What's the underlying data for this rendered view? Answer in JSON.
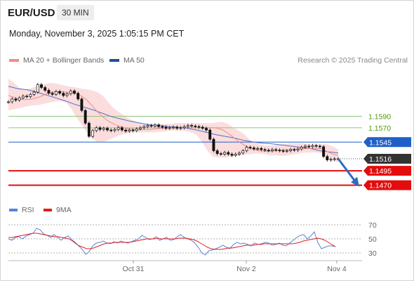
{
  "header": {
    "symbol": "EUR/USD",
    "timeframe": "30 MIN",
    "datetime": "Monday, November 3, 2025 1:05:15 PM CET",
    "research": "Research © 2025 Trading Central"
  },
  "legend": {
    "ma20_label": "MA 20 + Bollinger Bands",
    "ma50_label": "MA 50",
    "rsi_label": "RSI",
    "ma9_label": "9MA"
  },
  "colors": {
    "ma20": "#f08a8a",
    "bands_fill": "#fbd7d7",
    "ma50": "#4a72c9",
    "resistance_line": "#8cc77a",
    "resistance_text": "#4e9a06",
    "pivot": "#1f5fc8",
    "support": "#e30d0d",
    "last_price_bg": "#333333",
    "rsi": "#5b82d6",
    "rsi_ma": "#e02020",
    "candle": "#111111",
    "arrow": "#2d6dbb"
  },
  "chart_data": {
    "type": "candlestick",
    "title": "EUR/USD",
    "timeframe": "30 MIN",
    "y_range": [
      1.145,
      1.167
    ],
    "x_labels": [
      "Oct 31",
      "Nov 2",
      "Nov 4"
    ],
    "levels": [
      {
        "name": "resistance-2",
        "value": 1.159,
        "label": "1.1590",
        "style": "resistance"
      },
      {
        "name": "resistance-1",
        "value": 1.157,
        "label": "1.1570",
        "style": "resistance"
      },
      {
        "name": "pivot",
        "value": 1.1545,
        "label": "1.1545",
        "style": "pivot"
      },
      {
        "name": "last-price",
        "value": 1.1516,
        "label": "1.1516",
        "style": "last"
      },
      {
        "name": "support-1",
        "value": 1.1495,
        "label": "1.1495",
        "style": "support"
      },
      {
        "name": "support-2",
        "value": 1.147,
        "label": "1.1470",
        "style": "support"
      }
    ],
    "close": [
      1.1615,
      1.162,
      1.1618,
      1.1622,
      1.1625,
      1.1624,
      1.1628,
      1.1632,
      1.1645,
      1.164,
      1.1635,
      1.163,
      1.1628,
      1.1633,
      1.163,
      1.1626,
      1.1629,
      1.1634,
      1.163,
      1.162,
      1.16,
      1.1578,
      1.1555,
      1.1565,
      1.157,
      1.1567,
      1.1569,
      1.1566,
      1.1565,
      1.1567,
      1.157,
      1.1566,
      1.1564,
      1.1566,
      1.1565,
      1.1568,
      1.157,
      1.1572,
      1.1574,
      1.1573,
      1.1575,
      1.1572,
      1.1571,
      1.1569,
      1.157,
      1.1571,
      1.1569,
      1.157,
      1.1572,
      1.1574,
      1.1573,
      1.1572,
      1.1571,
      1.1569,
      1.1566,
      1.155,
      1.153,
      1.1525,
      1.1524,
      1.1527,
      1.1524,
      1.1522,
      1.1524,
      1.1526,
      1.153,
      1.1536,
      1.1535,
      1.1533,
      1.1534,
      1.1532,
      1.1531,
      1.153,
      1.1532,
      1.1531,
      1.153,
      1.1529,
      1.153,
      1.1532,
      1.1531,
      1.1533,
      1.1536,
      1.1538,
      1.1537,
      1.1539,
      1.1538,
      1.1537,
      1.152,
      1.1514,
      1.1515,
      1.1516,
      1.1516
    ],
    "ma20": [
      1.1626,
      1.1623,
      1.162,
      1.1619,
      1.1619,
      1.1621,
      1.1624,
      1.1628,
      1.1631,
      1.1633,
      1.1633,
      1.1632,
      1.1631,
      1.1629,
      1.1625,
      1.1618,
      1.1608,
      1.1598,
      1.1589,
      1.1582,
      1.1577,
      1.1573,
      1.157,
      1.1568,
      1.1567,
      1.1567,
      1.1567,
      1.1567,
      1.1568,
      1.1569,
      1.1569,
      1.157,
      1.157,
      1.157,
      1.157,
      1.157,
      1.157,
      1.157,
      1.157,
      1.157,
      1.1569,
      1.1566,
      1.156,
      1.1553,
      1.1546,
      1.154,
      1.1535,
      1.1532,
      1.153,
      1.1529,
      1.1529,
      1.153,
      1.1531,
      1.1532,
      1.1532,
      1.1533,
      1.1534,
      1.1534,
      1.1534,
      1.1534,
      1.1533,
      1.1528,
      1.1524,
      1.1522
    ],
    "bb_upper": [
      1.1655,
      1.1649,
      1.164,
      1.1636,
      1.1638,
      1.1641,
      1.1643,
      1.1646,
      1.1648,
      1.1647,
      1.1645,
      1.1643,
      1.1641,
      1.164,
      1.1638,
      1.1637,
      1.1635,
      1.1632,
      1.1626,
      1.1615,
      1.1605,
      1.1598,
      1.1592,
      1.1586,
      1.1582,
      1.1578,
      1.1576,
      1.1575,
      1.1575,
      1.1576,
      1.1577,
      1.1577,
      1.1578,
      1.1578,
      1.1578,
      1.1578,
      1.1578,
      1.1578,
      1.1578,
      1.1578,
      1.158,
      1.158,
      1.1576,
      1.157,
      1.1565,
      1.1559,
      1.155,
      1.1544,
      1.1541,
      1.1539,
      1.1539,
      1.154,
      1.1541,
      1.1542,
      1.1543,
      1.1543,
      1.1543,
      1.1542,
      1.1541,
      1.1541,
      1.1541,
      1.1541,
      1.1537,
      1.1532
    ],
    "bb_lower": [
      1.16,
      1.1602,
      1.1604,
      1.1606,
      1.1608,
      1.1609,
      1.161,
      1.1612,
      1.1614,
      1.1616,
      1.1616,
      1.1614,
      1.1603,
      1.1588,
      1.1575,
      1.1562,
      1.1551,
      1.1545,
      1.1545,
      1.1548,
      1.1552,
      1.1556,
      1.1559,
      1.1561,
      1.1562,
      1.1562,
      1.1562,
      1.1562,
      1.1562,
      1.1563,
      1.1564,
      1.1565,
      1.1565,
      1.1565,
      1.1564,
      1.1562,
      1.1557,
      1.1545,
      1.153,
      1.152,
      1.1518,
      1.1518,
      1.1519,
      1.152,
      1.1521,
      1.1523,
      1.1524,
      1.1525,
      1.1525,
      1.1524,
      1.1522,
      1.1522,
      1.1521,
      1.1521,
      1.1523,
      1.1524,
      1.1526,
      1.1527,
      1.1527,
      1.1527,
      1.1525,
      1.1518,
      1.1512,
      1.151
    ],
    "ma50": [
      1.1642,
      1.1638,
      1.1636,
      1.1632,
      1.1627,
      1.1622,
      1.1617,
      1.1611,
      1.1606,
      1.1601,
      1.1595,
      1.1589,
      1.1585,
      1.1581,
      1.1578,
      1.1575,
      1.1574,
      1.1572,
      1.1571,
      1.1569,
      1.1566,
      1.1562,
      1.1558,
      1.1555,
      1.1552,
      1.1548,
      1.1545,
      1.1543,
      1.1542,
      1.154,
      1.1538,
      1.1536,
      1.1534,
      1.153,
      1.1528,
      1.1526
    ],
    "forecast": {
      "from": 1.1516,
      "to": 1.147
    },
    "rsi": {
      "y_range": [
        20,
        80
      ],
      "ticks": [
        70,
        50,
        30
      ],
      "rsi": [
        50,
        48,
        52,
        53,
        50,
        54,
        56,
        58,
        65,
        63,
        57,
        55,
        52,
        56,
        52,
        48,
        52,
        54,
        49,
        45,
        40,
        35,
        28,
        32,
        40,
        44,
        45,
        47,
        44,
        43,
        46,
        44,
        47,
        45,
        44,
        46,
        48,
        50,
        55,
        52,
        49,
        50,
        53,
        48,
        50,
        52,
        48,
        49,
        53,
        56,
        52,
        50,
        48,
        44,
        38,
        30,
        27,
        33,
        34,
        36,
        38,
        41,
        38,
        36,
        42,
        45,
        43,
        44,
        42,
        40,
        44,
        42,
        43,
        45,
        44,
        41,
        42,
        44,
        41,
        40,
        44,
        48,
        52,
        55,
        56,
        50,
        54,
        60,
        45,
        36,
        38,
        40,
        40,
        39
      ],
      "ma9": [
        52,
        52,
        53,
        54,
        55,
        56,
        57,
        58,
        58,
        57,
        56,
        55,
        54,
        53,
        53,
        52,
        51,
        50,
        47,
        43,
        40,
        38,
        36,
        36,
        37,
        39,
        41,
        43,
        44,
        44,
        45,
        45,
        45,
        45,
        45,
        46,
        47,
        48,
        49,
        50,
        50,
        50,
        51,
        50,
        50,
        50,
        50,
        50,
        51,
        51,
        51,
        50,
        49,
        47,
        44,
        41,
        38,
        36,
        35,
        35,
        35,
        36,
        37,
        37,
        38,
        39,
        40,
        41,
        41,
        41,
        42,
        42,
        43,
        43,
        43,
        43,
        43,
        43,
        43,
        43,
        43,
        44,
        45,
        47,
        48,
        49,
        50,
        51,
        50,
        48,
        45,
        42,
        39
      ]
    }
  }
}
